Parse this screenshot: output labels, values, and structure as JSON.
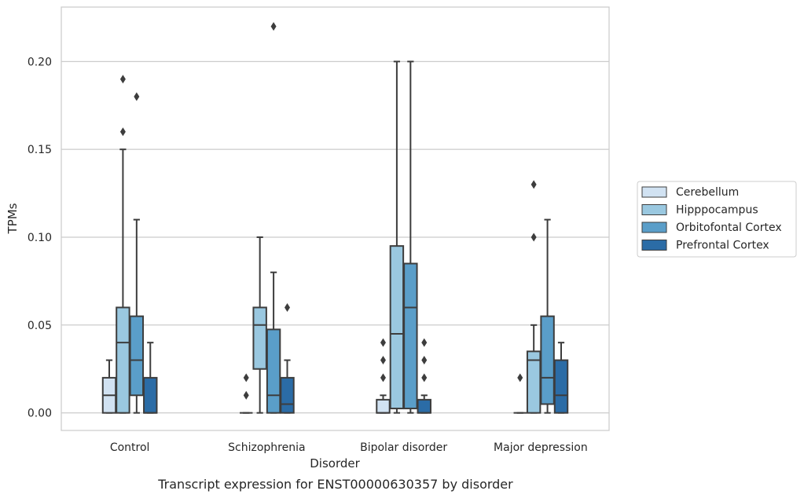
{
  "chart_data": {
    "type": "box",
    "title": "",
    "caption": "Transcript expression for ENST00000630357 by disorder",
    "xlabel": "Disorder",
    "ylabel": "TPMs",
    "categories": [
      "Control",
      "Schizophrenia",
      "Bipolar disorder",
      "Major depression"
    ],
    "yticks": [
      "0.00",
      "0.05",
      "0.10",
      "0.15",
      "0.20"
    ],
    "ylim": [
      -0.01,
      0.231
    ],
    "grid": true,
    "legend_position": "right",
    "series": [
      {
        "name": "Cerebellum",
        "color": "#d1e2f2",
        "boxes": [
          {
            "whislo": 0.0,
            "q1": 0.0,
            "med": 0.01,
            "q3": 0.02,
            "whishi": 0.03,
            "fliers": []
          },
          {
            "whislo": 0.0,
            "q1": 0.0,
            "med": 0.0,
            "q3": 0.0,
            "whishi": 0.0,
            "fliers": [
              0.01,
              0.02
            ]
          },
          {
            "whislo": 0.0,
            "q1": 0.0,
            "med": 0.0,
            "q3": 0.0075,
            "whishi": 0.01,
            "fliers": [
              0.02,
              0.03,
              0.04
            ]
          },
          {
            "whislo": 0.0,
            "q1": 0.0,
            "med": 0.0,
            "q3": 0.0,
            "whishi": 0.0,
            "fliers": [
              0.02
            ]
          }
        ]
      },
      {
        "name": "Hipppocampus",
        "color": "#9ac8e0",
        "boxes": [
          {
            "whislo": 0.0,
            "q1": 0.0,
            "med": 0.04,
            "q3": 0.06,
            "whishi": 0.15,
            "fliers": [
              0.16,
              0.19
            ]
          },
          {
            "whislo": 0.0,
            "q1": 0.025,
            "med": 0.05,
            "q3": 0.06,
            "whishi": 0.1,
            "fliers": []
          },
          {
            "whislo": 0.0,
            "q1": 0.0025,
            "med": 0.045,
            "q3": 0.095,
            "whishi": 0.2,
            "fliers": []
          },
          {
            "whislo": 0.0,
            "q1": 0.0,
            "med": 0.03,
            "q3": 0.035,
            "whishi": 0.05,
            "fliers": [
              0.1,
              0.13
            ]
          }
        ]
      },
      {
        "name": "Orbitofontal Cortex",
        "color": "#5a9ec9",
        "boxes": [
          {
            "whislo": 0.0,
            "q1": 0.01,
            "med": 0.03,
            "q3": 0.055,
            "whishi": 0.11,
            "fliers": [
              0.18
            ]
          },
          {
            "whislo": 0.0,
            "q1": 0.0,
            "med": 0.01,
            "q3": 0.0475,
            "whishi": 0.08,
            "fliers": [
              0.22
            ]
          },
          {
            "whislo": 0.0,
            "q1": 0.0025,
            "med": 0.06,
            "q3": 0.085,
            "whishi": 0.2,
            "fliers": []
          },
          {
            "whislo": 0.0,
            "q1": 0.005,
            "med": 0.02,
            "q3": 0.055,
            "whishi": 0.11,
            "fliers": []
          }
        ]
      },
      {
        "name": "Prefrontal Cortex",
        "color": "#2b6ca6",
        "boxes": [
          {
            "whislo": 0.0,
            "q1": 0.0,
            "med": 0.0,
            "q3": 0.02,
            "whishi": 0.04,
            "fliers": []
          },
          {
            "whislo": 0.0,
            "q1": 0.0,
            "med": 0.005,
            "q3": 0.02,
            "whishi": 0.03,
            "fliers": [
              0.06
            ]
          },
          {
            "whislo": 0.0,
            "q1": 0.0,
            "med": 0.0,
            "q3": 0.0075,
            "whishi": 0.01,
            "fliers": [
              0.02,
              0.03,
              0.04
            ]
          },
          {
            "whislo": 0.0,
            "q1": 0.0,
            "med": 0.01,
            "q3": 0.03,
            "whishi": 0.04,
            "fliers": []
          }
        ]
      }
    ]
  }
}
